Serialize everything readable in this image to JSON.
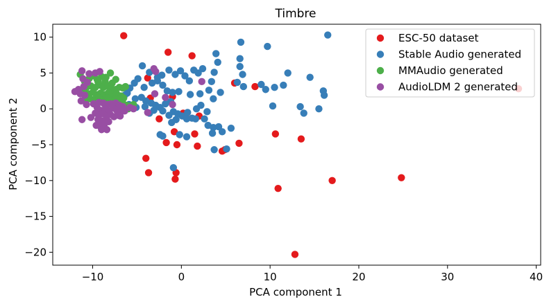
{
  "chart_data": {
    "type": "scatter",
    "title": "Timbre",
    "xlabel": "PCA component 1",
    "ylabel": "PCA component 2",
    "xlim": [
      -14.5,
      40.5
    ],
    "ylim": [
      -21.8,
      11.8
    ],
    "xticks": [
      -10,
      0,
      10,
      20,
      30,
      40
    ],
    "yticks": [
      10,
      5,
      0,
      -5,
      -10,
      -15,
      -20
    ],
    "xtick_labels": [
      "−10",
      "0",
      "10",
      "20",
      "30",
      "40"
    ],
    "ytick_labels": [
      "10",
      "5",
      "0",
      "−5",
      "−10",
      "−15",
      "−20"
    ],
    "grid": false,
    "legend_position": "top-right",
    "series": [
      {
        "name": "ESC-50 dataset",
        "color": "#e41a1c",
        "points": [
          [
            -6.5,
            10.2
          ],
          [
            -1.5,
            7.9
          ],
          [
            1.2,
            7.4
          ],
          [
            -3.8,
            4.3
          ],
          [
            -3.5,
            1.5
          ],
          [
            -2.5,
            -1.4
          ],
          [
            -0.8,
            -3.2
          ],
          [
            -1.7,
            -4.7
          ],
          [
            -0.5,
            -5.0
          ],
          [
            -0.6,
            -8.9
          ],
          [
            -0.7,
            -9.8
          ],
          [
            -4.0,
            -6.9
          ],
          [
            -3.7,
            -8.9
          ],
          [
            0.5,
            -1.1
          ],
          [
            1.5,
            -3.5
          ],
          [
            1.8,
            -5.2
          ],
          [
            2.0,
            -1.0
          ],
          [
            4.6,
            -5.9
          ],
          [
            4.9,
            -5.7
          ],
          [
            6.5,
            -4.8
          ],
          [
            6.0,
            3.6
          ],
          [
            8.3,
            3.1
          ],
          [
            10.6,
            -3.5
          ],
          [
            10.9,
            -11.1
          ],
          [
            13.5,
            -4.2
          ],
          [
            17.0,
            -10.0
          ],
          [
            24.8,
            -9.6
          ],
          [
            12.8,
            -20.3
          ],
          [
            38.0,
            2.8
          ],
          [
            -1.0,
            1.7
          ],
          [
            0.2,
            -0.6
          ]
        ]
      },
      {
        "name": "Stable Audio generated",
        "color": "#377eb8",
        "points": [
          [
            -4.4,
            6.0
          ],
          [
            -3.6,
            5.1
          ],
          [
            -2.7,
            4.4
          ],
          [
            -2.2,
            4.7
          ],
          [
            -1.4,
            5.4
          ],
          [
            -0.7,
            4.8
          ],
          [
            -0.1,
            5.3
          ],
          [
            0.4,
            4.6
          ],
          [
            0.9,
            3.9
          ],
          [
            1.4,
            5.4
          ],
          [
            1.9,
            5.0
          ],
          [
            2.4,
            5.6
          ],
          [
            3.4,
            3.8
          ],
          [
            3.7,
            5.1
          ],
          [
            4.1,
            6.5
          ],
          [
            3.9,
            7.7
          ],
          [
            4.4,
            2.3
          ],
          [
            3.6,
            1.4
          ],
          [
            3.1,
            2.6
          ],
          [
            2.1,
            2.1
          ],
          [
            1.0,
            2.0
          ],
          [
            -0.3,
            2.4
          ],
          [
            -1.0,
            2.3
          ],
          [
            -1.6,
            2.5
          ],
          [
            -2.1,
            3.3
          ],
          [
            -2.7,
            3.9
          ],
          [
            -3.3,
            3.6
          ],
          [
            -4.2,
            3.0
          ],
          [
            -4.9,
            4.2
          ],
          [
            -5.3,
            3.6
          ],
          [
            -5.8,
            2.9
          ],
          [
            -6.1,
            2.2
          ],
          [
            -6.4,
            1.9
          ],
          [
            -5.2,
            1.4
          ],
          [
            -4.5,
            1.6
          ],
          [
            -4.0,
            1.1
          ],
          [
            -3.4,
            0.8
          ],
          [
            -2.9,
            0.5
          ],
          [
            -2.4,
            0.2
          ],
          [
            -2.1,
            -0.3
          ],
          [
            -1.4,
            -0.9
          ],
          [
            -0.9,
            -0.4
          ],
          [
            -0.4,
            -0.7
          ],
          [
            0.1,
            -1.0
          ],
          [
            0.7,
            -0.5
          ],
          [
            1.2,
            -1.3
          ],
          [
            0.6,
            -1.4
          ],
          [
            1.6,
            -1.4
          ],
          [
            -0.6,
            -1.5
          ],
          [
            -0.2,
            -3.6
          ],
          [
            0.6,
            -3.9
          ],
          [
            -1.1,
            -1.9
          ],
          [
            -2.1,
            -3.8
          ],
          [
            -2.4,
            -3.6
          ],
          [
            -3.1,
            -0.2
          ],
          [
            -3.6,
            -0.6
          ],
          [
            -4.1,
            0.3
          ],
          [
            -5.1,
            0.2
          ],
          [
            -5.9,
            0.6
          ],
          [
            2.6,
            -1.4
          ],
          [
            3.0,
            -2.3
          ],
          [
            3.6,
            -2.6
          ],
          [
            4.2,
            -2.5
          ],
          [
            4.6,
            -3.2
          ],
          [
            5.6,
            -2.7
          ],
          [
            3.5,
            -3.4
          ],
          [
            3.7,
            -5.7
          ],
          [
            5.1,
            -5.6
          ],
          [
            2.9,
            -0.4
          ],
          [
            1.7,
            0.0
          ],
          [
            -0.9,
            -8.2
          ],
          [
            6.3,
            3.7
          ],
          [
            6.9,
            4.8
          ],
          [
            6.6,
            5.9
          ],
          [
            6.6,
            7.0
          ],
          [
            6.7,
            9.3
          ],
          [
            7.0,
            3.1
          ],
          [
            9.0,
            3.4
          ],
          [
            9.5,
            2.7
          ],
          [
            10.3,
            0.4
          ],
          [
            9.7,
            8.7
          ],
          [
            10.5,
            3.0
          ],
          [
            11.5,
            3.3
          ],
          [
            12.0,
            5.0
          ],
          [
            13.4,
            0.3
          ],
          [
            13.8,
            -0.6
          ],
          [
            14.5,
            4.4
          ],
          [
            15.5,
            0.0
          ],
          [
            16.0,
            2.5
          ],
          [
            16.1,
            1.9
          ],
          [
            16.5,
            10.3
          ],
          [
            -1.2,
            1.0
          ],
          [
            -1.8,
            0.7
          ],
          [
            2.2,
            0.5
          ]
        ]
      },
      {
        "name": "MMAudio generated",
        "color": "#4daf4a",
        "points": [
          [
            -10.4,
            4.2
          ],
          [
            -10.0,
            4.6
          ],
          [
            -9.5,
            4.1
          ],
          [
            -9.0,
            4.5
          ],
          [
            -8.6,
            3.8
          ],
          [
            -8.0,
            5.0
          ],
          [
            -7.8,
            3.6
          ],
          [
            -7.4,
            4.1
          ],
          [
            -10.7,
            3.0
          ],
          [
            -10.2,
            3.2
          ],
          [
            -9.7,
            3.0
          ],
          [
            -9.2,
            3.3
          ],
          [
            -8.8,
            3.0
          ],
          [
            -8.3,
            3.2
          ],
          [
            -7.9,
            2.9
          ],
          [
            -7.4,
            2.7
          ],
          [
            -7.0,
            3.0
          ],
          [
            -6.6,
            2.9
          ],
          [
            -6.3,
            3.1
          ],
          [
            -10.5,
            2.1
          ],
          [
            -10.0,
            2.3
          ],
          [
            -9.6,
            2.0
          ],
          [
            -9.1,
            2.2
          ],
          [
            -8.7,
            2.0
          ],
          [
            -8.2,
            2.3
          ],
          [
            -7.8,
            2.0
          ],
          [
            -7.3,
            2.1
          ],
          [
            -6.8,
            1.8
          ],
          [
            -6.5,
            1.5
          ],
          [
            -10.3,
            1.4
          ],
          [
            -9.8,
            1.3
          ],
          [
            -9.3,
            1.5
          ],
          [
            -8.9,
            1.2
          ],
          [
            -8.4,
            1.5
          ],
          [
            -7.9,
            1.2
          ],
          [
            -7.4,
            1.4
          ],
          [
            -7.0,
            1.0
          ],
          [
            -6.6,
            0.8
          ],
          [
            -6.2,
            0.5
          ],
          [
            -5.8,
            0.4
          ],
          [
            -5.4,
            0.6
          ],
          [
            -6.0,
            0.0
          ],
          [
            -10.8,
            1.2
          ],
          [
            -11.1,
            2.5
          ],
          [
            -10.9,
            3.8
          ],
          [
            -9.4,
            3.8
          ],
          [
            -8.5,
            4.4
          ],
          [
            -11.4,
            4.8
          ]
        ]
      },
      {
        "name": "AudioLDM 2 generated",
        "color": "#984ea3",
        "points": [
          [
            -11.2,
            5.3
          ],
          [
            -10.4,
            4.9
          ],
          [
            -9.7,
            5.0
          ],
          [
            -9.2,
            5.2
          ],
          [
            -11.1,
            4.2
          ],
          [
            -10.6,
            3.7
          ],
          [
            -11.0,
            3.1
          ],
          [
            -11.6,
            2.7
          ],
          [
            -12.0,
            2.4
          ],
          [
            -11.4,
            2.1
          ],
          [
            -10.9,
            1.9
          ],
          [
            -11.3,
            1.1
          ],
          [
            -10.7,
            0.6
          ],
          [
            -9.9,
            0.7
          ],
          [
            -9.3,
            0.9
          ],
          [
            -8.8,
            0.8
          ],
          [
            -8.3,
            0.6
          ],
          [
            -7.9,
            0.7
          ],
          [
            -7.4,
            0.8
          ],
          [
            -7.0,
            0.5
          ],
          [
            -6.6,
            0.3
          ],
          [
            -9.5,
            0.2
          ],
          [
            -9.1,
            -0.2
          ],
          [
            -8.6,
            0.0
          ],
          [
            -8.2,
            -0.3
          ],
          [
            -7.7,
            0.1
          ],
          [
            -7.3,
            -0.2
          ],
          [
            -6.9,
            -0.1
          ],
          [
            -6.4,
            -0.3
          ],
          [
            -9.7,
            -0.6
          ],
          [
            -9.3,
            -0.9
          ],
          [
            -8.9,
            -0.7
          ],
          [
            -8.4,
            -1.0
          ],
          [
            -8.0,
            -0.8
          ],
          [
            -7.6,
            -1.1
          ],
          [
            -7.1,
            -0.9
          ],
          [
            -9.4,
            -1.5
          ],
          [
            -9.0,
            -1.7
          ],
          [
            -8.6,
            -1.6
          ],
          [
            -8.2,
            -1.8
          ],
          [
            -9.6,
            -2.3
          ],
          [
            -9.1,
            -2.5
          ],
          [
            -8.7,
            -2.2
          ],
          [
            -8.4,
            -2.9
          ],
          [
            -9.0,
            -2.9
          ],
          [
            -11.2,
            -1.5
          ],
          [
            -10.2,
            -1.2
          ],
          [
            -6.9,
            -1.0
          ],
          [
            -5.8,
            0.2
          ],
          [
            -5.4,
            0.0
          ],
          [
            -3.1,
            5.6
          ],
          [
            -2.9,
            5.2
          ],
          [
            -3.0,
            2.1
          ],
          [
            -1.8,
            1.6
          ],
          [
            -1.0,
            0.6
          ],
          [
            2.3,
            3.8
          ],
          [
            -3.8,
            -0.5
          ]
        ]
      }
    ]
  }
}
